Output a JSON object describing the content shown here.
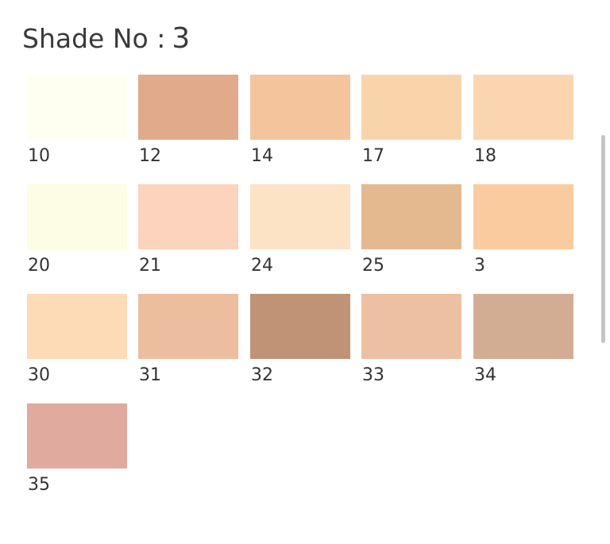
{
  "header": {
    "label": "Shade No :",
    "selected": "3"
  },
  "shades": [
    {
      "label": "10",
      "color": "#fffff1"
    },
    {
      "label": "12",
      "color": "#e0aa8b"
    },
    {
      "label": "14",
      "color": "#f4c59d"
    },
    {
      "label": "17",
      "color": "#f9d4aa"
    },
    {
      "label": "18",
      "color": "#fbd5b0"
    },
    {
      "label": "20",
      "color": "#fdfde5"
    },
    {
      "label": "21",
      "color": "#fcd3bc"
    },
    {
      "label": "24",
      "color": "#fde3c5"
    },
    {
      "label": "25",
      "color": "#e4b990"
    },
    {
      "label": "3",
      "color": "#fbcba0"
    },
    {
      "label": "30",
      "color": "#fddbb7"
    },
    {
      "label": "31",
      "color": "#ecbd9f"
    },
    {
      "label": "32",
      "color": "#c09376"
    },
    {
      "label": "33",
      "color": "#edc0a3"
    },
    {
      "label": "34",
      "color": "#d3ad93"
    },
    {
      "label": "35",
      "color": "#e0aa9e"
    }
  ]
}
